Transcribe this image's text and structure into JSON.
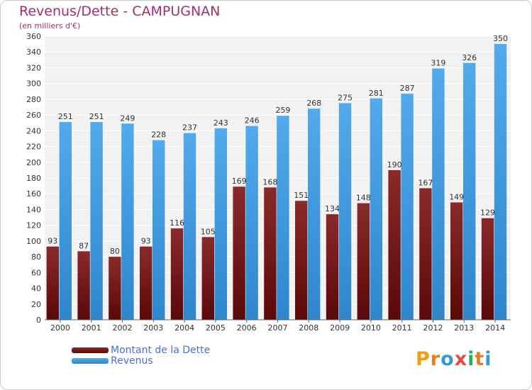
{
  "chart_data": {
    "type": "bar",
    "title": "Revenus/Dette - CAMPUGNAN",
    "subtitle": "(en milliers d'€)",
    "categories": [
      "2000",
      "2001",
      "2002",
      "2003",
      "2004",
      "2005",
      "2006",
      "2007",
      "2008",
      "2009",
      "2010",
      "2011",
      "2012",
      "2013",
      "2014"
    ],
    "series": [
      {
        "name": "Montant de la Dette",
        "color": "#7a1a1a",
        "values": [
          93,
          87,
          80,
          93,
          116,
          105,
          169,
          168,
          151,
          134,
          148,
          190,
          167,
          149,
          129
        ]
      },
      {
        "name": "Revenus",
        "color": "#3f9be0",
        "values": [
          251,
          251,
          249,
          228,
          237,
          243,
          246,
          259,
          268,
          275,
          281,
          287,
          319,
          326,
          350
        ]
      }
    ],
    "ylim": [
      0,
      360
    ],
    "ytick_step": 20,
    "grid": true,
    "legend": "bottom-left"
  },
  "logo": {
    "letters": [
      "P",
      "r",
      "o",
      "x",
      "i",
      "t",
      "i"
    ],
    "colors": [
      "#f39c12",
      "#e67e22",
      "#3498db",
      "#e74c3c",
      "#27ae60",
      "#e67e22",
      "#3498db"
    ]
  }
}
